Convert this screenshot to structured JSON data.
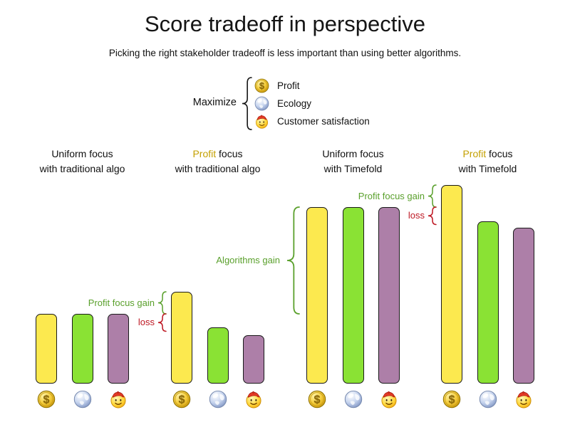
{
  "title": "Score tradeoff in perspective",
  "subtitle": "Picking the right stakeholder tradeoff is less important than using better algorithms.",
  "legend": {
    "label": "Maximize",
    "items": [
      {
        "label": "Profit",
        "icon": "coin-icon"
      },
      {
        "label": "Ecology",
        "icon": "globe-icon"
      },
      {
        "label": "Customer satisfaction",
        "icon": "smiley-icon"
      }
    ]
  },
  "colors": {
    "profit_bar": "#FCE94F",
    "ecology_bar": "#8AE234",
    "customer_bar": "#AD7FA8",
    "bar_border": "#1A1A1A",
    "gain_text": "#5AA02C",
    "loss_text": "#BE1823",
    "profit_word": "#C4A000",
    "text": "#101010"
  },
  "chart_data": {
    "type": "bar",
    "title": "Score tradeoff in perspective",
    "subtitle": "Picking the right stakeholder tradeoff is less important than using better algorithms.",
    "unit": "relative score (bar height in px, no numeric axis shown)",
    "axes": {
      "y_axis_shown": false,
      "x_axis_shown": false,
      "grid": false
    },
    "legend_position": "top-center",
    "stakeholders": [
      {
        "name": "Profit",
        "icon": "coin-icon",
        "color": "#FCE94F"
      },
      {
        "name": "Ecology",
        "icon": "globe-icon",
        "color": "#8AE234"
      },
      {
        "name": "Customer satisfaction",
        "icon": "smiley-icon",
        "color": "#AD7FA8"
      }
    ],
    "groups": [
      {
        "line1_highlight": "",
        "line1_rest": "Uniform focus",
        "line2": "with traditional algo",
        "values": [
          98,
          98,
          98
        ]
      },
      {
        "line1_highlight": "Profit",
        "line1_rest": " focus",
        "line2": "with traditional algo",
        "values": [
          129,
          79,
          68
        ]
      },
      {
        "line1_highlight": "",
        "line1_rest": "Uniform focus",
        "line2": "with Timefold",
        "values": [
          248,
          248,
          248
        ]
      },
      {
        "line1_highlight": "Profit",
        "line1_rest": " focus",
        "line2": "with Timefold",
        "values": [
          279,
          228,
          219
        ]
      }
    ],
    "annotations": [
      {
        "text": "Profit focus gain",
        "kind": "gain",
        "group": 1,
        "ref_group": 0,
        "big": false
      },
      {
        "text": "loss",
        "kind": "loss",
        "group": 1,
        "ref_group": 0,
        "big": false
      },
      {
        "text": "Algorithms gain",
        "kind": "gain",
        "group": 2,
        "ref_group": 0,
        "big": true
      },
      {
        "text": "Profit focus gain",
        "kind": "gain",
        "group": 3,
        "ref_group": 2,
        "big": false
      },
      {
        "text": "loss",
        "kind": "loss",
        "group": 3,
        "ref_group": 2,
        "big": false
      }
    ]
  }
}
